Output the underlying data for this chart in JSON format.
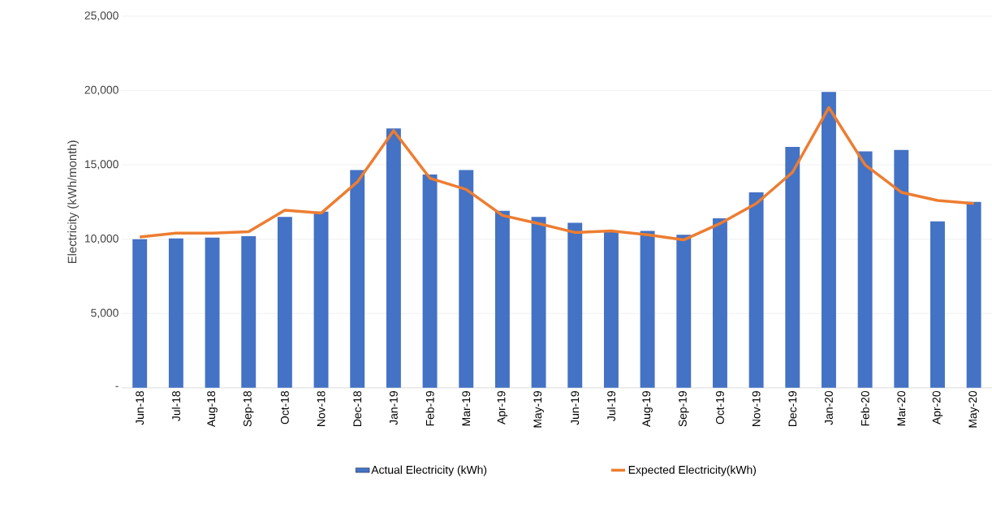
{
  "chart_data": {
    "type": "bar",
    "ylabel": "Electricity (kWh/month)",
    "categories": [
      "Jun-18",
      "Jul-18",
      "Aug-18",
      "Sep-18",
      "Oct-18",
      "Nov-18",
      "Dec-18",
      "Jan-19",
      "Feb-19",
      "Mar-19",
      "Apr-19",
      "May-19",
      "Jun-19",
      "Jul-19",
      "Aug-19",
      "Sep-19",
      "Oct-19",
      "Nov-19",
      "Dec-19",
      "Jan-20",
      "Feb-20",
      "Mar-20",
      "Apr-20",
      "May-20"
    ],
    "series": [
      {
        "name": "Actual Electricity (kWh)",
        "color": "#4472c4",
        "values": [
          10000,
          10050,
          10100,
          10200,
          11500,
          11850,
          14650,
          17450,
          14350,
          14650,
          11900,
          11500,
          11100,
          10500,
          10550,
          10300,
          11400,
          13150,
          16200,
          19900,
          15900,
          16000,
          11200,
          12500
        ]
      },
      {
        "name": "Expected Electricity(kWh)",
        "type": "line",
        "color": "#ed7d31",
        "values": [
          10150,
          10400,
          10400,
          10500,
          11950,
          11750,
          13850,
          17300,
          14100,
          13350,
          11600,
          11050,
          10450,
          10550,
          10300,
          9950,
          11050,
          12400,
          14500,
          18850,
          15000,
          13150,
          12600,
          12400
        ]
      }
    ],
    "ylim": [
      0,
      25000
    ],
    "yticks": [
      {
        "value": 0,
        "label": "-"
      },
      {
        "value": 5000,
        "label": "5,000"
      },
      {
        "value": 10000,
        "label": "10,000"
      },
      {
        "value": 15000,
        "label": "15,000"
      },
      {
        "value": 20000,
        "label": "20,000"
      },
      {
        "value": 25000,
        "label": "25,000"
      }
    ],
    "grid": "y",
    "legend": "bottom",
    "marker": "none"
  }
}
